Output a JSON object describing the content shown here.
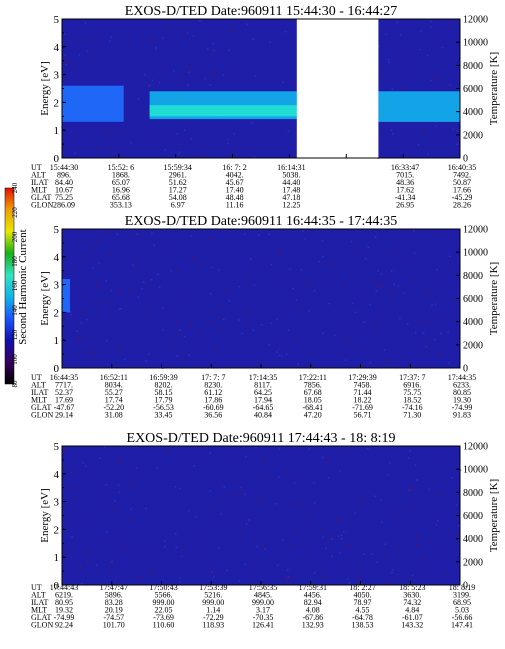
{
  "chart_data": [
    {
      "type": "heatmap",
      "title": "EXOS-D/TED   Date:960911   15:44:30 - 16:44:27",
      "ylabel": "Energy [eV]",
      "y2label": "Temperature [K]",
      "ylim": [
        0,
        5
      ],
      "y2lim": [
        0,
        12000
      ],
      "yticks": [
        "0",
        "1",
        "2",
        "3",
        "4",
        "5"
      ],
      "y2ticks": [
        "0",
        "2000",
        "4000",
        "6000",
        "8000",
        "10000",
        "12000"
      ],
      "data_gap": [
        0.59,
        0.795
      ],
      "bands": [
        {
          "x": [
            0.0,
            0.155
          ],
          "y": [
            1.3,
            2.6
          ],
          "level": "medium"
        },
        {
          "x": [
            0.22,
            0.59
          ],
          "y": [
            1.4,
            2.4
          ],
          "level": "high"
        },
        {
          "x": [
            0.22,
            0.59
          ],
          "y": [
            1.5,
            1.9
          ],
          "level": "peak"
        },
        {
          "x": [
            0.795,
            1.0
          ],
          "y": [
            1.3,
            2.4
          ],
          "level": "high"
        }
      ],
      "table": {
        "rows": [
          {
            "label": "UT",
            "values": [
              "15:44:30",
              "15:52: 6",
              "15:59:34",
              "16: 7: 2",
              "16:14:31",
              "",
              "16:33:47",
              "16:40:35"
            ]
          },
          {
            "label": "ALT",
            "values": [
              "896.",
              "1868.",
              "2961.",
              "4042.",
              "5038.",
              "",
              "7015.",
              "7492."
            ]
          },
          {
            "label": "ILAT",
            "values": [
              "84.40",
              "65.07",
              "51.62",
              "45.67",
              "44.40",
              "",
              "48.36",
              "50.87"
            ]
          },
          {
            "label": "MLT",
            "values": [
              "10.67",
              "16.96",
              "17.27",
              "17.40",
              "17.48",
              "",
              "17.62",
              "17.66"
            ]
          },
          {
            "label": "GLAT",
            "values": [
              "75.25",
              "65.68",
              "54.08",
              "48.48",
              "47.18",
              "",
              "-41.34",
              "-45.29"
            ]
          },
          {
            "label": "GLON",
            "values": [
              "286.09",
              "353.13",
              "6.97",
              "11.16",
              "12.25",
              "",
              "26.95",
              "28.26"
            ]
          }
        ]
      }
    },
    {
      "type": "heatmap",
      "title": "EXOS-D/TED   Date:960911   16:44:35 - 17:44:35",
      "ylabel": "Energy [eV]",
      "y2label": "Temperature [K]",
      "ylim": [
        0,
        5
      ],
      "y2lim": [
        0,
        12000
      ],
      "yticks": [
        "0",
        "1",
        "2",
        "3",
        "4",
        "5"
      ],
      "y2ticks": [
        "0",
        "2000",
        "4000",
        "6000",
        "8000",
        "10000",
        "12000"
      ],
      "bands": [
        {
          "x": [
            0.0,
            0.02
          ],
          "y": [
            2.0,
            3.2
          ],
          "level": "medium"
        }
      ],
      "table": {
        "rows": [
          {
            "label": "UT",
            "values": [
              "16:44:35",
              "16:52:11",
              "16:59:39",
              "17: 7: 7",
              "17:14:35",
              "17:22:11",
              "17:29:39",
              "17:37: 7",
              "17:44:35"
            ]
          },
          {
            "label": "ALT",
            "values": [
              "7717.",
              "8034.",
              "8202.",
              "8230.",
              "8117.",
              "7856.",
              "7458.",
              "6916.",
              "6233."
            ]
          },
          {
            "label": "ILAT",
            "values": [
              "52.37",
              "55.27",
              "58.15",
              "61.12",
              "64.25",
              "67.68",
              "71.44",
              "75.75",
              "80.85"
            ]
          },
          {
            "label": "MLT",
            "values": [
              "17.69",
              "17.74",
              "17.79",
              "17.86",
              "17.94",
              "18.05",
              "18.22",
              "18.52",
              "19.30"
            ]
          },
          {
            "label": "GLAT",
            "values": [
              "-47.67",
              "-52.20",
              "-56.53",
              "-60.69",
              "-64.65",
              "-68.41",
              "-71.69",
              "-74.16",
              "-74.99"
            ]
          },
          {
            "label": "GLON",
            "values": [
              "29.14",
              "31.08",
              "33.45",
              "36.56",
              "40.84",
              "47.20",
              "56.71",
              "71.30",
              "91.83"
            ]
          }
        ]
      }
    },
    {
      "type": "heatmap",
      "title": "EXOS-D/TED   Date:960911   17:44:43 - 18: 8:19",
      "ylabel": "Energy [eV]",
      "y2label": "Temperature [K]",
      "ylim": [
        0,
        5
      ],
      "y2lim": [
        0,
        12000
      ],
      "yticks": [
        "0",
        "1",
        "2",
        "3",
        "4",
        "5"
      ],
      "y2ticks": [
        "0",
        "2000",
        "4000",
        "6000",
        "8000",
        "10000",
        "12000"
      ],
      "bands": [],
      "table": {
        "rows": [
          {
            "label": "UT",
            "values": [
              "17:44:43",
              "17:47:47",
              "17:50:43",
              "17:53:39",
              "17:56:35",
              "17:59:31",
              "18: 2:27",
              "18: 5:23",
              "18: 8:19"
            ]
          },
          {
            "label": "ALT",
            "values": [
              "6219.",
              "5896.",
              "5566.",
              "5216.",
              "4845.",
              "4456.",
              "4050.",
              "3630.",
              "3199."
            ]
          },
          {
            "label": "ILAT",
            "values": [
              "80.95",
              "83.28",
              "999.00",
              "999.00",
              "999.00",
              "82.94",
              "78.97",
              "74.32",
              "68.95"
            ]
          },
          {
            "label": "MLT",
            "values": [
              "19.32",
              "20.19",
              "22.05",
              "1.14",
              "3.17",
              "4.08",
              "4.55",
              "4.84",
              "5.03"
            ]
          },
          {
            "label": "GLAT",
            "values": [
              "-74.99",
              "-74.57",
              "-73.69",
              "-72.29",
              "-70.35",
              "-67.86",
              "-64.78",
              "-61.07",
              "-56.66"
            ]
          },
          {
            "label": "GLON",
            "values": [
              "92.24",
              "101.70",
              "110.60",
              "118.93",
              "126.41",
              "132.93",
              "138.53",
              "143.32",
              "147.41"
            ]
          }
        ]
      }
    }
  ],
  "colorbar": {
    "label": "Second Harmonic Current",
    "ticks": [
      "80",
      "100",
      "120",
      "140",
      "160",
      "180",
      "200",
      "220",
      "240"
    ],
    "stops": [
      "#000000",
      "#3a0060",
      "#1010b0",
      "#1a55ff",
      "#10b4e8",
      "#30e4c0",
      "#18b018",
      "#e8e800",
      "#f0a000",
      "#e81000"
    ]
  },
  "colors": {
    "background": "#1e1ea8",
    "medium": "#1f70ff",
    "high": "#12b2ee",
    "peak": "#24e6d0",
    "noise": "#7a1030",
    "gap": "#ffffff"
  }
}
